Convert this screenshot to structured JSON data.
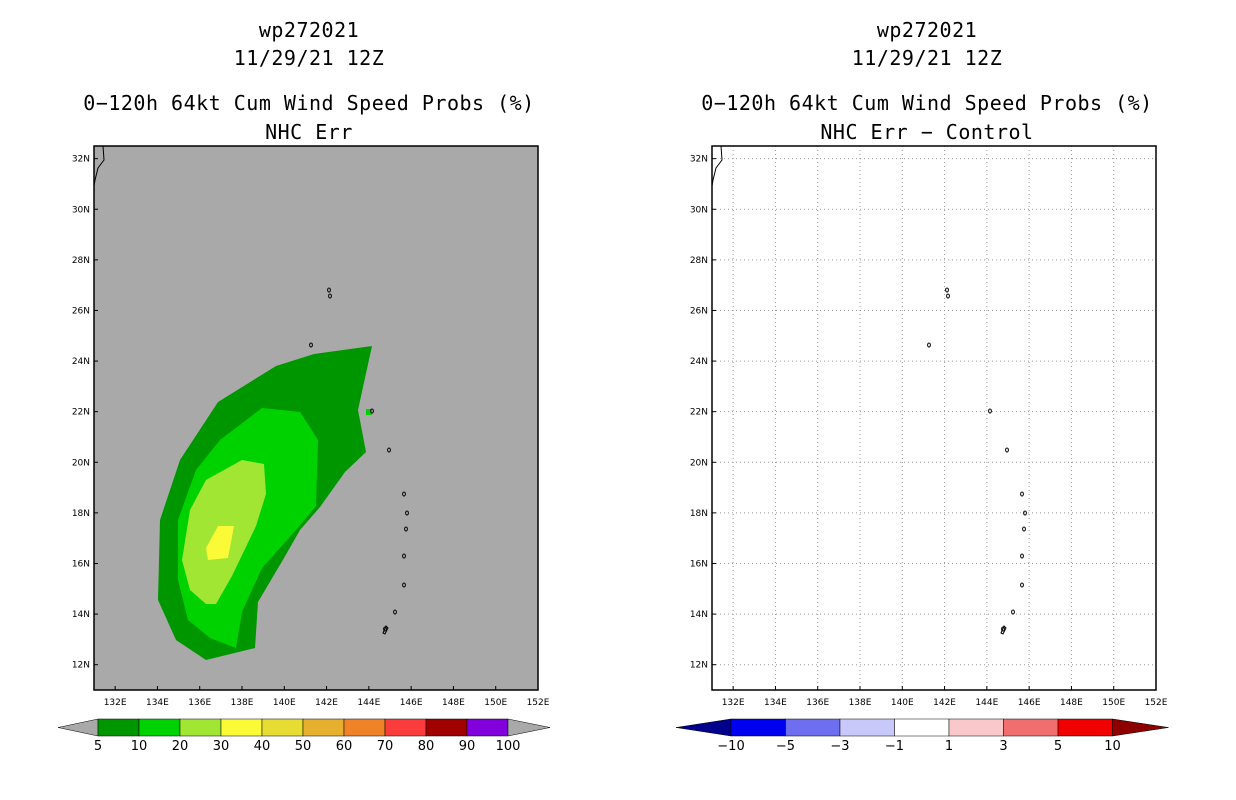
{
  "panels": [
    {
      "storm_id": "wp272021",
      "datetime": "11/29/21 12Z",
      "product": "0−120h 64kt Cum Wind Speed Probs (%)",
      "subtitle": "NHC Err",
      "background_color": "#a9a9a9",
      "colorbar": {
        "colors": [
          "#009600",
          "#00d200",
          "#a0e632",
          "#fafa37",
          "#e6dc32",
          "#e6af2d",
          "#f08228",
          "#fa3c3c",
          "#a00000",
          "#8200dc"
        ],
        "labels": [
          "5",
          "10",
          "20",
          "30",
          "40",
          "50",
          "60",
          "70",
          "80",
          "90",
          "100"
        ],
        "end_color": "#a9a9a9"
      }
    },
    {
      "storm_id": "wp272021",
      "datetime": "11/29/21 12Z",
      "product": "0−120h 64kt Cum Wind Speed Probs (%)",
      "subtitle": "NHC Err − Control",
      "background_color": "#ffffff",
      "colorbar": {
        "colors": [
          "#0000f0",
          "#6e6ef0",
          "#c8c8fa",
          "#ffffff",
          "#fac8c8",
          "#f06e6e",
          "#f00000"
        ],
        "labels": [
          "−10",
          "−5",
          "−3",
          "−1",
          "1",
          "3",
          "5",
          "10"
        ],
        "left_end_color": "#00008c",
        "right_end_color": "#8c0000"
      }
    }
  ],
  "map": {
    "lon_labels": [
      "132E",
      "134E",
      "136E",
      "138E",
      "140E",
      "142E",
      "144E",
      "146E",
      "148E",
      "150E",
      "152E"
    ],
    "lat_labels": [
      "12N",
      "14N",
      "16N",
      "18N",
      "20N",
      "22N",
      "24N",
      "26N",
      "28N",
      "30N",
      "32N"
    ]
  }
}
